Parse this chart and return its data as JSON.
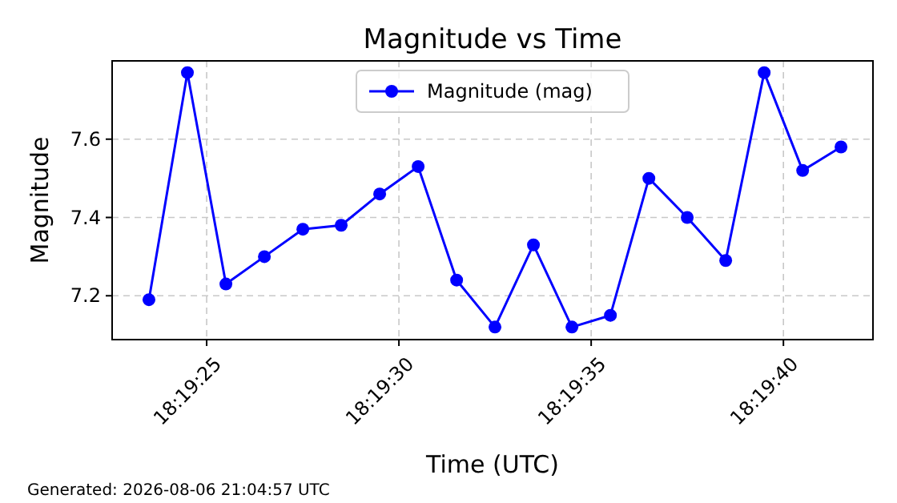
{
  "chart_data": {
    "type": "line",
    "title": "Magnitude vs Time",
    "xlabel": "Time (UTC)",
    "ylabel": "Magnitude",
    "x": [
      18.323194,
      18.323472,
      18.32375,
      18.324028,
      18.324306,
      18.324583,
      18.324861,
      18.325139,
      18.325417,
      18.325694,
      18.325972,
      18.32625,
      18.326528,
      18.326806,
      18.327083,
      18.327361,
      18.327639,
      18.327917,
      18.328194
    ],
    "series": [
      {
        "name": "Magnitude (mag)",
        "color": "#0000ff",
        "values": [
          7.19,
          7.77,
          7.23,
          7.3,
          7.37,
          7.38,
          7.46,
          7.53,
          7.24,
          7.12,
          7.33,
          7.12,
          7.15,
          7.5,
          7.4,
          7.29,
          7.77,
          7.52,
          7.58
        ]
      }
    ],
    "xlim": [
      18.322928,
      18.328425
    ],
    "xticks": [
      {
        "value": 18.323611,
        "label": "18:19:25"
      },
      {
        "value": 18.325,
        "label": "18:19:30"
      },
      {
        "value": 18.326389,
        "label": "18:19:35"
      },
      {
        "value": 18.327778,
        "label": "18:19:40"
      }
    ],
    "ylim": [
      7.088,
      7.8
    ],
    "yticks": [
      {
        "value": 7.2,
        "label": "7.2"
      },
      {
        "value": 7.4,
        "label": "7.4"
      },
      {
        "value": 7.6,
        "label": "7.6"
      }
    ],
    "grid": true,
    "legend": "top",
    "marker": "circle",
    "line_style": "solid",
    "annotations": [
      "Generated: 2026-08-06 21:04:57 UTC"
    ]
  }
}
